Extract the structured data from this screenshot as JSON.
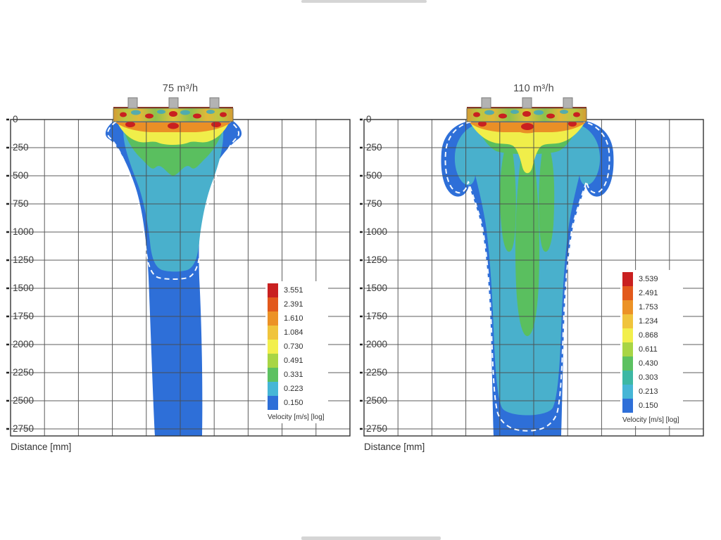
{
  "figure": {
    "panels": [
      {
        "id": "left",
        "title": "75 m³/h",
        "xlabel": "Distance [mm]",
        "y_ticks": [
          "0",
          "250",
          "500",
          "750",
          "1000",
          "1250",
          "1500",
          "1750",
          "2000",
          "2250",
          "2500",
          "2750"
        ],
        "legend": {
          "title": "Velocity [m/s] [log]",
          "items": [
            {
              "value": "3.551",
              "color": "#c92020"
            },
            {
              "value": "2.391",
              "color": "#e2591c"
            },
            {
              "value": "1.610",
              "color": "#ec9226"
            },
            {
              "value": "1.084",
              "color": "#f0c43c"
            },
            {
              "value": "0.730",
              "color": "#f2ef4c"
            },
            {
              "value": "0.491",
              "color": "#a8d545"
            },
            {
              "value": "0.331",
              "color": "#5cc161"
            },
            {
              "value": "0.223",
              "color": "#46b6d6"
            },
            {
              "value": "0.150",
              "color": "#2e6fd8"
            }
          ]
        }
      },
      {
        "id": "right",
        "title": "110 m³/h",
        "xlabel": "Distance [mm]",
        "y_ticks": [
          "0",
          "250",
          "500",
          "750",
          "1000",
          "1250",
          "1500",
          "1750",
          "2000",
          "2250",
          "2500",
          "2750"
        ],
        "legend": {
          "title": "Velocity [m/s] [log]",
          "items": [
            {
              "value": "3.539",
              "color": "#c92020"
            },
            {
              "value": "2.491",
              "color": "#e2591c"
            },
            {
              "value": "1.753",
              "color": "#ec9226"
            },
            {
              "value": "1.234",
              "color": "#f0c43c"
            },
            {
              "value": "0.868",
              "color": "#f2ef4c"
            },
            {
              "value": "0.611",
              "color": "#a8d545"
            },
            {
              "value": "0.430",
              "color": "#5cc161"
            },
            {
              "value": "0.303",
              "color": "#3db8a4"
            },
            {
              "value": "0.213",
              "color": "#46b6d6"
            },
            {
              "value": "0.150",
              "color": "#2e6fd8"
            }
          ]
        }
      }
    ]
  },
  "chart_data": [
    {
      "type": "heatmap",
      "title": "75 m³/h",
      "xlabel": "Distance [mm]",
      "y_axis": {
        "ticks_mm": [
          0,
          250,
          500,
          750,
          1000,
          1250,
          1500,
          1750,
          2000,
          2250,
          2500,
          2750
        ]
      },
      "grid": true,
      "colorbar": {
        "label": "Velocity [m/s] [log]",
        "scale": "log",
        "levels": [
          3.551,
          2.391,
          1.61,
          1.084,
          0.73,
          0.491,
          0.331,
          0.223,
          0.15
        ]
      }
    },
    {
      "type": "heatmap",
      "title": "110 m³/h",
      "xlabel": "Distance [mm]",
      "y_axis": {
        "ticks_mm": [
          0,
          250,
          500,
          750,
          1000,
          1250,
          1500,
          1750,
          2000,
          2250,
          2500,
          2750
        ]
      },
      "grid": true,
      "colorbar": {
        "label": "Velocity [m/s] [log]",
        "scale": "log",
        "levels": [
          3.539,
          2.491,
          1.753,
          1.234,
          0.868,
          0.611,
          0.43,
          0.303,
          0.213,
          0.15
        ]
      }
    }
  ]
}
